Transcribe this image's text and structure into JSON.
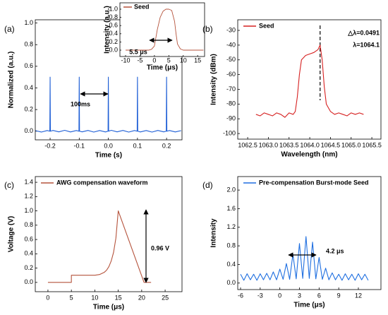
{
  "chart_data": [
    {
      "type": "line",
      "panel_label": "(a)",
      "xlabel": "Time (s)",
      "ylabel": "Normalized (a.u.)",
      "annotations": [
        "100ms"
      ],
      "x": [
        -0.25,
        -0.23,
        -0.21,
        -0.201,
        -0.2,
        -0.199,
        -0.19,
        -0.17,
        -0.15,
        -0.13,
        -0.11,
        -0.101,
        -0.1,
        -0.099,
        -0.09,
        -0.07,
        -0.05,
        -0.03,
        -0.01,
        -0.001,
        0,
        0.001,
        0.01,
        0.03,
        0.05,
        0.07,
        0.09,
        0.099,
        0.1,
        0.101,
        0.11,
        0.13,
        0.15,
        0.17,
        0.19,
        0.199,
        0.2,
        0.201,
        0.21,
        0.23,
        0.25
      ],
      "series": [
        {
          "color": "#1f5fd6",
          "values": [
            0.005,
            -0.008,
            0.006,
            0,
            0.5,
            0,
            0.007,
            -0.006,
            0.008,
            -0.007,
            0.006,
            0,
            0.5,
            0,
            -0.006,
            0.007,
            -0.008,
            0.006,
            -0.007,
            0,
            0.5,
            0,
            0.008,
            -0.006,
            0.007,
            -0.008,
            0.006,
            0,
            0.5,
            0,
            -0.007,
            0.006,
            -0.008,
            0.007,
            -0.006,
            0,
            0.5,
            0,
            0.006,
            -0.007,
            0.005
          ]
        }
      ],
      "xlim": [
        -0.251,
        0.253
      ],
      "xticks": [
        -0.2,
        -0.1,
        {
          "value": 0,
          "label": "0.0"
        },
        0.1,
        0.2
      ],
      "ylim": [
        -0.08,
        1.03
      ],
      "yticks": [
        {
          "value": 0,
          "label": "0.0"
        },
        0.2,
        0.4,
        0.6,
        0.8,
        {
          "value": 1,
          "label": "1.0"
        }
      ]
    },
    {
      "type": "line",
      "xlabel": "Time (μs)",
      "ylabel": "Intensity (a.u.)",
      "annotations": [
        "5.5 μs"
      ],
      "x": [
        -10,
        -2,
        -1,
        0,
        0.5,
        1,
        2,
        3,
        4,
        5,
        6,
        7,
        7.5,
        8,
        9,
        10,
        17
      ],
      "series": [
        {
          "name": "Seed",
          "color": "#b5533c",
          "values": [
            0,
            0,
            0.02,
            0.1,
            0.3,
            0.5,
            0.8,
            0.95,
            1.0,
            1.0,
            0.97,
            0.7,
            0.4,
            0.15,
            0.03,
            0,
            0
          ]
        }
      ],
      "xlim": [
        -11.96,
        17.4
      ],
      "xticks": [
        -10,
        -5,
        0,
        5,
        10,
        15
      ],
      "ylim": [
        -0.155,
        1.155
      ],
      "yticks": [
        {
          "value": 0,
          "label": "0.0"
        },
        0.2,
        0.4,
        0.6,
        0.8,
        {
          "value": 1,
          "label": "1.0"
        }
      ]
    },
    {
      "type": "line",
      "panel_label": "(b)",
      "xlabel": "Wavelength (nm)",
      "ylabel": "Intensity (dBm)",
      "annotations": [
        "△λ=0.0491",
        "λ=1064.1"
      ],
      "x": [
        1062.7,
        1062.8,
        1062.9,
        1063.0,
        1063.1,
        1063.2,
        1063.3,
        1063.4,
        1063.5,
        1063.6,
        1063.65,
        1063.7,
        1063.75,
        1063.8,
        1063.9,
        1064.0,
        1064.1,
        1064.2,
        1064.25,
        1064.3,
        1064.35,
        1064.4,
        1064.5,
        1064.6,
        1064.7,
        1064.8,
        1064.9,
        1065.0,
        1065.1,
        1065.2,
        1065.3
      ],
      "series": [
        {
          "name": "Seed",
          "color": "#d62020",
          "values": [
            -87,
            -88,
            -86,
            -87,
            -88,
            -86,
            -87,
            -89,
            -86,
            -87,
            -85,
            -75,
            -60,
            -50,
            -47,
            -46,
            -45,
            -43,
            -40,
            -50,
            -68,
            -80,
            -85,
            -87,
            -86,
            -87,
            -88,
            -86,
            -87,
            -86,
            -87
          ]
        }
      ],
      "vline": 1064.25,
      "xlim": [
        1062.26,
        1065.72
      ],
      "xticks": [
        1062.5,
        {
          "value": 1063,
          "label": "1063.0"
        },
        1063.5,
        {
          "value": 1064,
          "label": "1064.0"
        },
        1064.5,
        {
          "value": 1065,
          "label": "1065.0"
        },
        1065.5
      ],
      "ylim": [
        -103.8,
        -22.8
      ],
      "yticks": [
        -100,
        -90,
        -80,
        -70,
        -60,
        -50,
        -40,
        -30
      ]
    },
    {
      "type": "line",
      "panel_label": "(c)",
      "xlabel": "Time (μs)",
      "ylabel": "Voltage (V)",
      "annotations": [
        "0.96 V"
      ],
      "x": [
        0,
        5,
        5,
        6,
        8,
        10,
        11,
        12,
        12.5,
        13,
        13.5,
        14,
        14.5,
        15,
        20.5,
        22
      ],
      "series": [
        {
          "name": "AWG compensation waveform",
          "color": "#b5533c",
          "values": [
            0,
            0,
            0.1,
            0.1,
            0.1,
            0.1,
            0.11,
            0.14,
            0.17,
            0.22,
            0.3,
            0.42,
            0.62,
            1.0,
            0,
            0
          ]
        }
      ],
      "xlim": [
        -2.7,
        28.6
      ],
      "xticks": [
        0,
        5,
        10,
        15,
        20,
        25
      ],
      "ylim": [
        -0.13,
        1.48
      ],
      "yticks": [
        {
          "value": 0,
          "label": "0.0"
        },
        0.2,
        0.4,
        0.6,
        0.8,
        {
          "value": 1,
          "label": "1.0"
        },
        1.2,
        1.4
      ]
    },
    {
      "type": "line",
      "panel_label": "(d)",
      "xlabel": "Time (μs)",
      "ylabel": "Intensity",
      "annotations": [
        "4.2 μs"
      ],
      "x": [
        -6,
        -5.5,
        -5,
        -4.5,
        -4,
        -3.5,
        -3,
        -2.5,
        -2,
        -1.5,
        -1,
        -0.5,
        0,
        0.5,
        1,
        1.5,
        2,
        2.5,
        3,
        3.5,
        4,
        4.5,
        5,
        5.5,
        6,
        6.5,
        7,
        7.5,
        8,
        8.5,
        9,
        9.5,
        10,
        10.5,
        11,
        11.5,
        12,
        12.5,
        13,
        13.5
      ],
      "series": [
        {
          "name": "Pre-compensation Burst-mode Seed",
          "color": "#1f6fe0",
          "values": [
            0.19,
            0.06,
            0.2,
            0.07,
            0.19,
            0.06,
            0.2,
            0.07,
            0.21,
            0.07,
            0.24,
            0.07,
            0.3,
            0.08,
            0.42,
            0.08,
            0.62,
            0.09,
            0.85,
            0.1,
            1.0,
            0.1,
            0.88,
            0.09,
            0.55,
            0.08,
            0.32,
            0.07,
            0.22,
            0.07,
            0.19,
            0.06,
            0.2,
            0.07,
            0.19,
            0.06,
            0.2,
            0.07,
            0.19,
            0.06
          ]
        }
      ],
      "xlim": [
        -6.43,
        15.45
      ],
      "xticks": [
        -6,
        -3,
        0,
        3,
        6,
        9,
        12
      ],
      "ylim": [
        -0.14,
        2.29
      ],
      "yticks": [
        {
          "value": 0,
          "label": "0.0"
        },
        0.4,
        0.8,
        1.2,
        1.6,
        {
          "value": 2,
          "label": "2.0"
        }
      ]
    }
  ]
}
